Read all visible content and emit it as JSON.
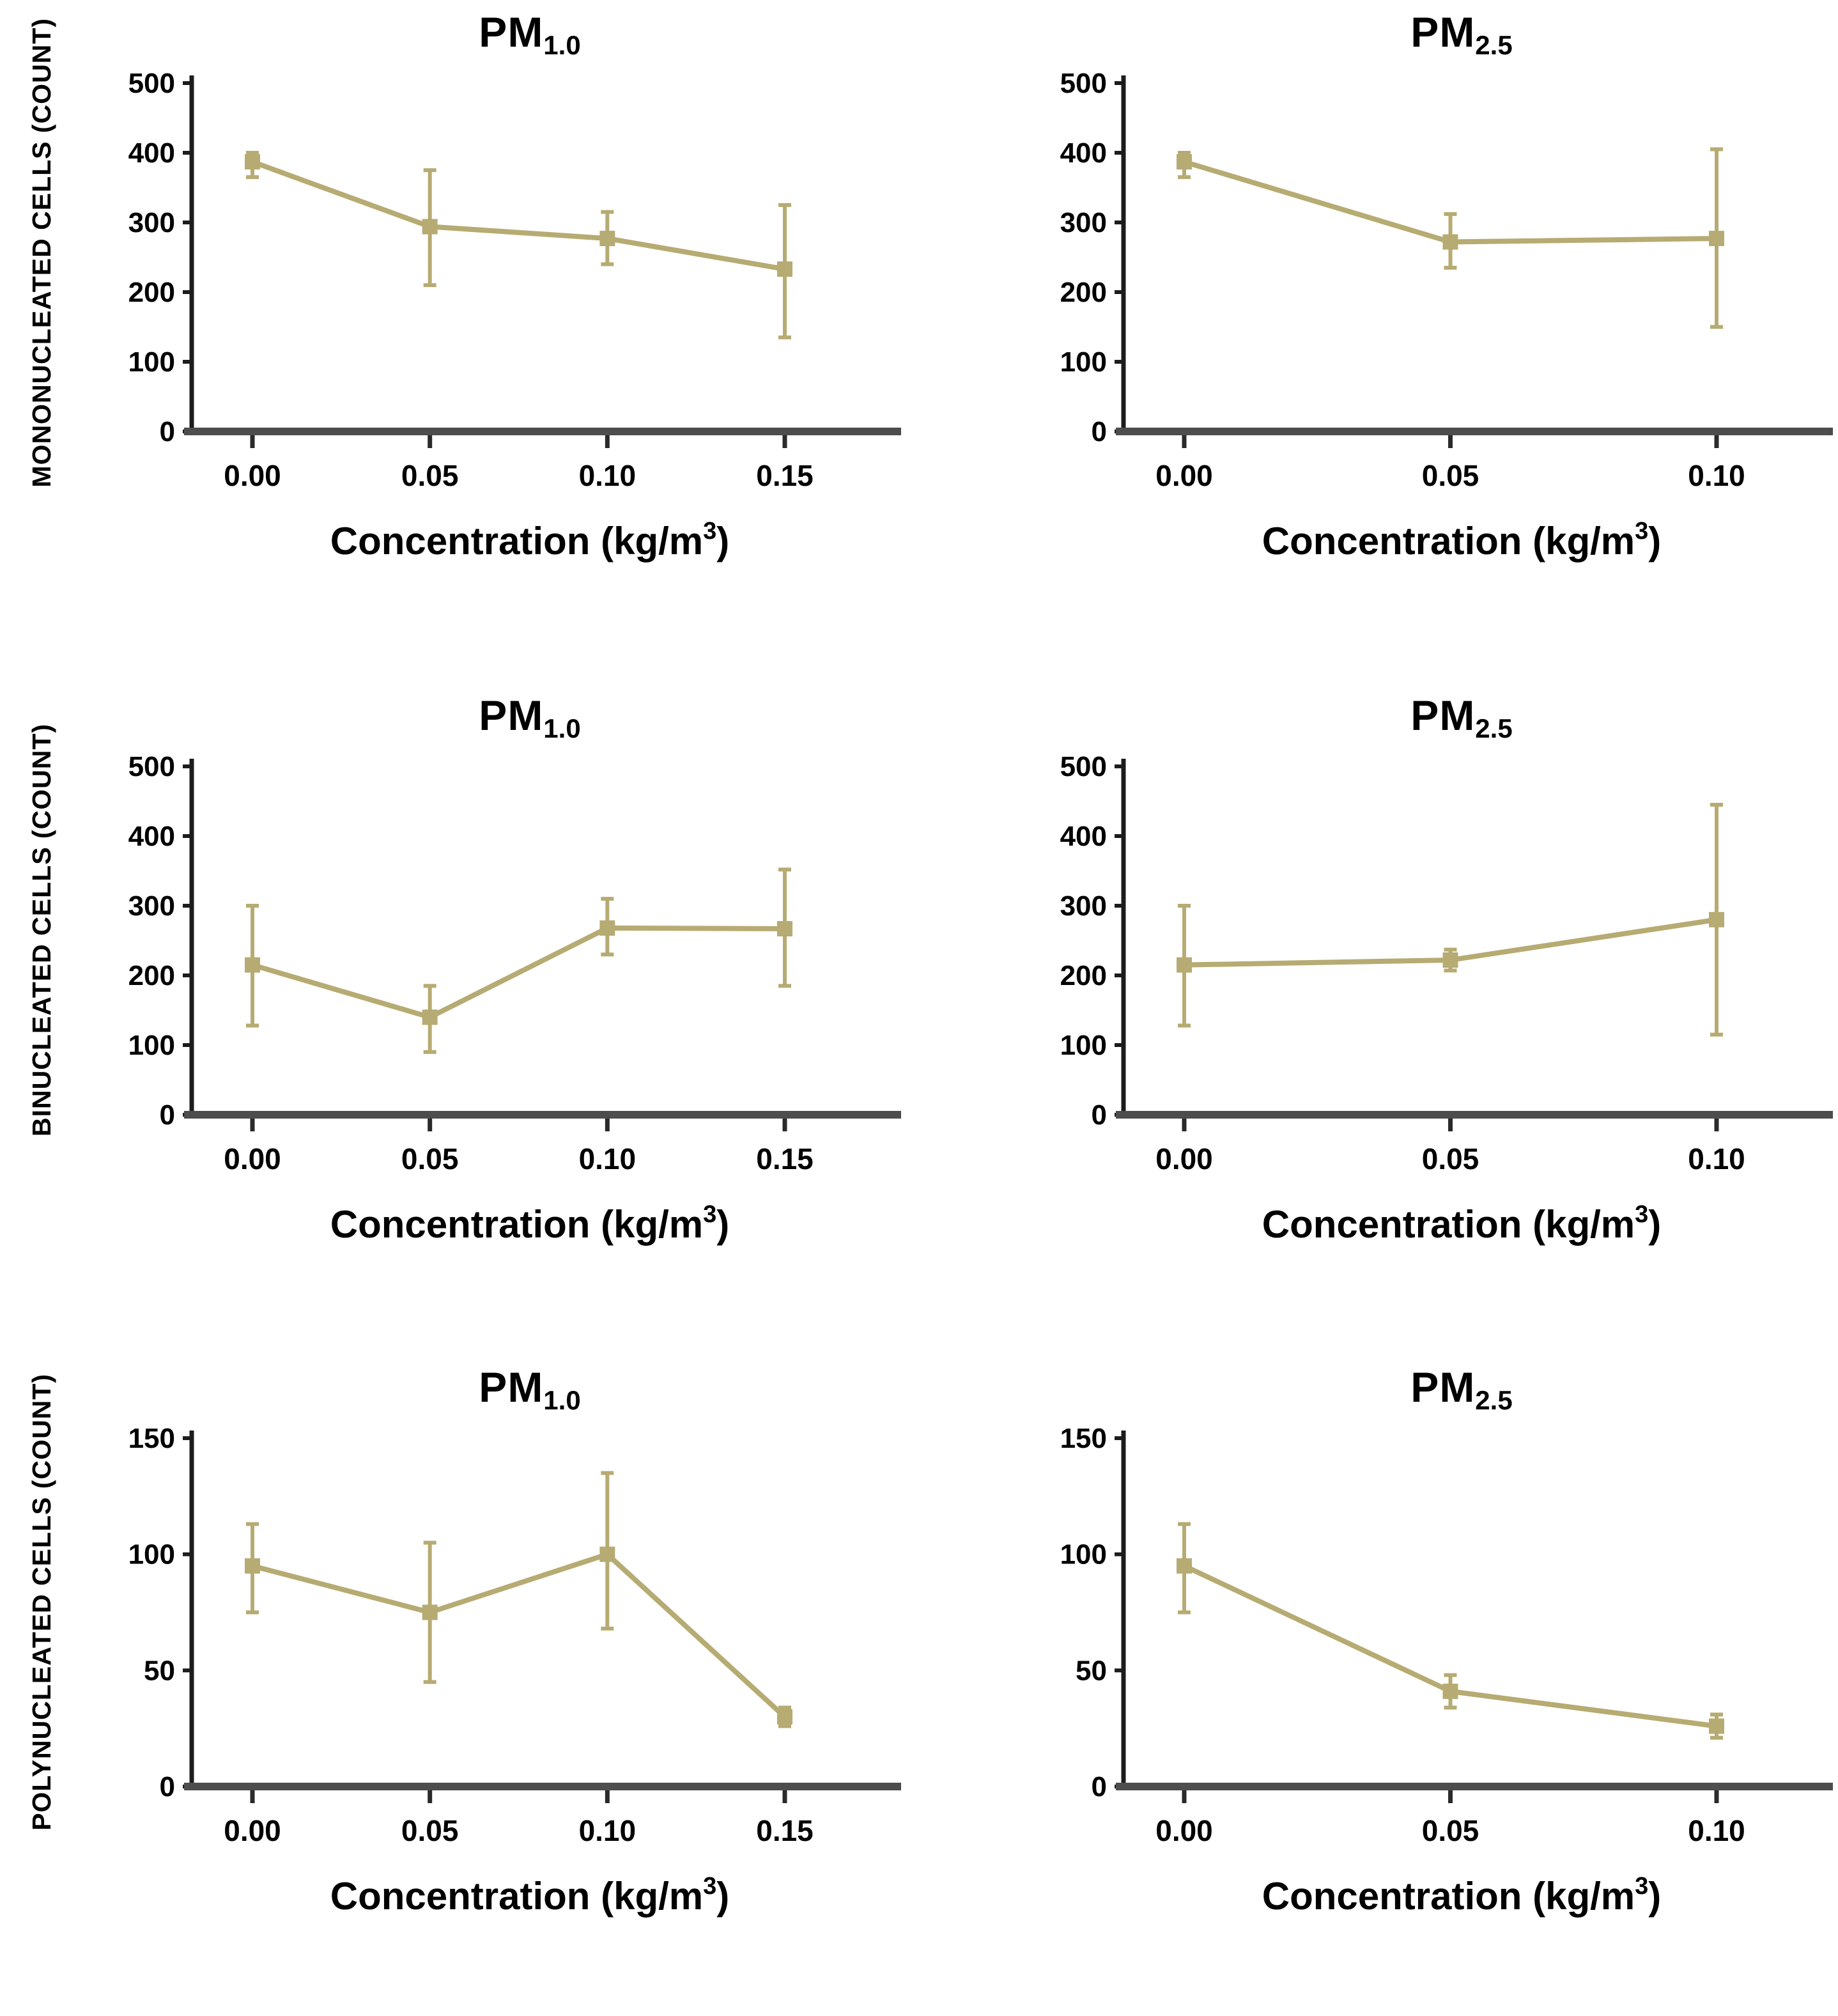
{
  "colors": {
    "series": "#b6ab72",
    "y_axis": "#1c1c1c",
    "x_axis": "#4d4d4d",
    "tick": "#2a2a2a",
    "background": "#ffffff"
  },
  "rows": [
    {
      "ylabel": "MONONUCLEATED CELLS (COUNT)"
    },
    {
      "ylabel": "BINUCLEATED CELLS (COUNT)"
    },
    {
      "ylabel": "POLYNUCLEATED CELLS (COUNT)"
    }
  ],
  "xlabel": {
    "pre": "Concentration (kg/m",
    "sup": "3",
    "post": ")"
  },
  "chart_data": [
    {
      "id": "mononucleated-pm10",
      "type": "line",
      "title": {
        "prefix": "PM",
        "sub": "1.0"
      },
      "ylabel": "MONONUCLEATED CELLS (COUNT)",
      "xlabel_text": "Concentration (kg/m3)",
      "categories": [
        "0.00",
        "0.05",
        "0.10",
        "0.15"
      ],
      "values": [
        387,
        294,
        277,
        233
      ],
      "err_low": [
        365,
        210,
        240,
        135
      ],
      "err_high": [
        400,
        375,
        315,
        325
      ],
      "ylim": [
        0,
        500
      ],
      "yticks": [
        "0",
        "100",
        "200",
        "300",
        "400",
        "500"
      ],
      "grid": "off",
      "legend": "none"
    },
    {
      "id": "mononucleated-pm25",
      "type": "line",
      "title": {
        "prefix": "PM",
        "sub": "2.5"
      },
      "ylabel": "MONONUCLEATED CELLS (COUNT)",
      "xlabel_text": "Concentration (kg/m3)",
      "categories": [
        "0.00",
        "0.05",
        "0.10"
      ],
      "values": [
        387,
        272,
        277
      ],
      "err_low": [
        365,
        235,
        150
      ],
      "err_high": [
        400,
        312,
        405
      ],
      "ylim": [
        0,
        500
      ],
      "yticks": [
        "0",
        "100",
        "200",
        "300",
        "400",
        "500"
      ],
      "grid": "off",
      "legend": "none"
    },
    {
      "id": "binucleated-pm10",
      "type": "line",
      "title": {
        "prefix": "PM",
        "sub": "1.0"
      },
      "ylabel": "BINUCLEATED CELLS (COUNT)",
      "xlabel_text": "Concentration (kg/m3)",
      "categories": [
        "0.00",
        "0.05",
        "0.10",
        "0.15"
      ],
      "values": [
        215,
        140,
        268,
        267
      ],
      "err_low": [
        128,
        90,
        230,
        185
      ],
      "err_high": [
        300,
        185,
        310,
        352
      ],
      "ylim": [
        0,
        500
      ],
      "yticks": [
        "0",
        "100",
        "200",
        "300",
        "400",
        "500"
      ],
      "grid": "off",
      "legend": "none"
    },
    {
      "id": "binucleated-pm25",
      "type": "line",
      "title": {
        "prefix": "PM",
        "sub": "2.5"
      },
      "ylabel": "BINUCLEATED CELLS (COUNT)",
      "xlabel_text": "Concentration (kg/m3)",
      "categories": [
        "0.00",
        "0.05",
        "0.10"
      ],
      "values": [
        215,
        222,
        280
      ],
      "err_low": [
        128,
        207,
        115
      ],
      "err_high": [
        300,
        237,
        445
      ],
      "ylim": [
        0,
        500
      ],
      "yticks": [
        "0",
        "100",
        "200",
        "300",
        "400",
        "500"
      ],
      "grid": "off",
      "legend": "none"
    },
    {
      "id": "polynucleated-pm10",
      "type": "line",
      "title": {
        "prefix": "PM",
        "sub": "1.0"
      },
      "ylabel": "POLYNUCLEATED CELLS (COUNT)",
      "xlabel_text": "Concentration (kg/m3)",
      "categories": [
        "0.00",
        "0.05",
        "0.10",
        "0.15"
      ],
      "values": [
        95,
        75,
        100,
        30
      ],
      "err_low": [
        75,
        45,
        68,
        26
      ],
      "err_high": [
        113,
        105,
        135,
        34
      ],
      "ylim": [
        0,
        150
      ],
      "yticks": [
        "0",
        "50",
        "100",
        "150"
      ],
      "grid": "off",
      "legend": "none"
    },
    {
      "id": "polynucleated-pm25",
      "type": "line",
      "title": {
        "prefix": "PM",
        "sub": "2.5"
      },
      "ylabel": "POLYNUCLEATED CELLS (COUNT)",
      "xlabel_text": "Concentration (kg/m3)",
      "categories": [
        "0.00",
        "0.05",
        "0.10"
      ],
      "values": [
        95,
        41,
        26
      ],
      "err_low": [
        75,
        34,
        21
      ],
      "err_high": [
        113,
        48,
        31
      ],
      "ylim": [
        0,
        150
      ],
      "yticks": [
        "0",
        "50",
        "100",
        "150"
      ],
      "grid": "off",
      "legend": "none"
    }
  ]
}
